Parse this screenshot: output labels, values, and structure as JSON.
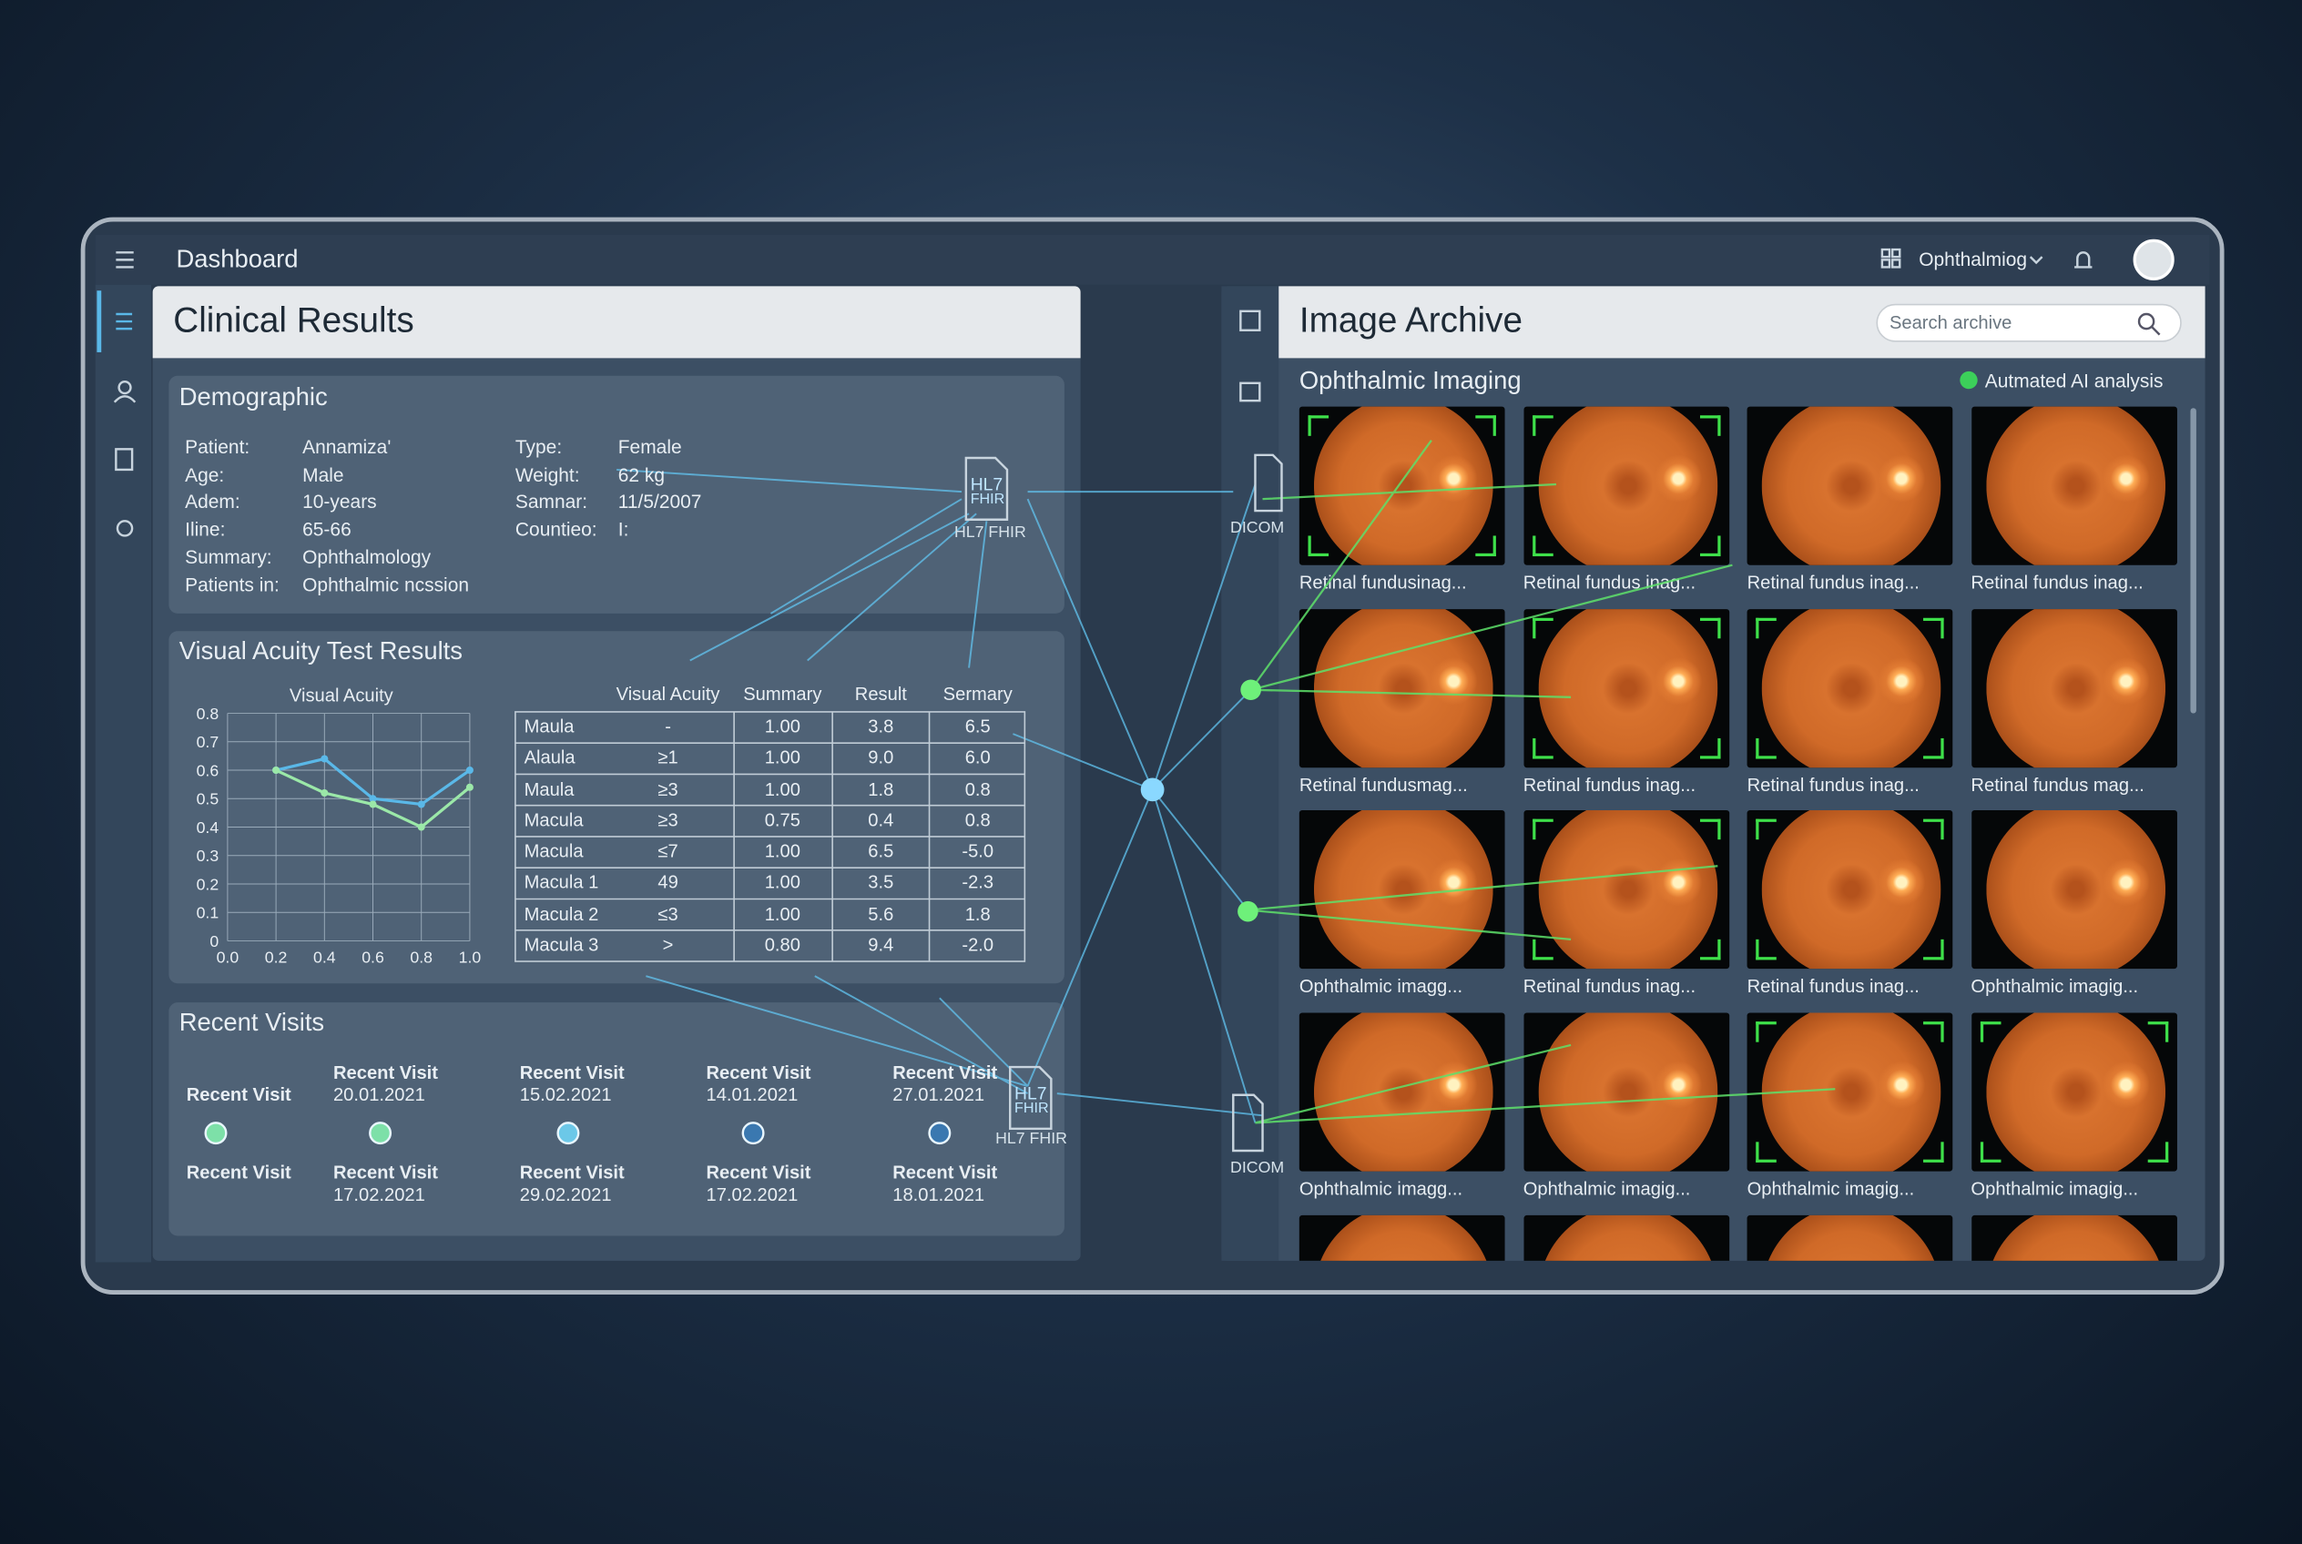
{
  "topbar": {
    "title": "Dashboard",
    "user_menu": "Ophthalmiog"
  },
  "clinical": {
    "title": "Clinical Results",
    "demographic": {
      "title": "Demographic",
      "left": [
        [
          "Patient:",
          "Annamiza'"
        ],
        [
          "Age:",
          "Male"
        ],
        [
          "Adem:",
          "10-years"
        ],
        [
          "Iline:",
          "65-66"
        ],
        [
          "Summary:",
          "Ophthalmology"
        ],
        [
          "Patients in:",
          "Ophthalmic ncssion"
        ]
      ],
      "right": [
        [
          "Type:",
          "Female"
        ],
        [
          "Weight:",
          "62 kg"
        ],
        [
          "Samnar:",
          "11/5/2007"
        ],
        [
          "Countieo:",
          "I:"
        ]
      ]
    },
    "acuity": {
      "title": "Visual Acuity Test Results",
      "table": {
        "header": [
          "Visual Acuity",
          "Summary",
          "Result",
          "Sermary"
        ],
        "rows": [
          [
            "Maula",
            "-",
            "1.00",
            "3.8",
            "6.5"
          ],
          [
            "Alaula",
            "≥1",
            "1.00",
            "9.0",
            "6.0"
          ],
          [
            "Maula",
            "≥3",
            "1.00",
            "1.8",
            "0.8"
          ],
          [
            "Macula",
            "≥3",
            "0.75",
            "0.4",
            "0.8"
          ],
          [
            "Macula",
            "≤7",
            "1.00",
            "6.5",
            "-5.0"
          ],
          [
            "Macula 1",
            "49",
            "1.00",
            "3.5",
            "-2.3"
          ],
          [
            "Macula 2",
            "≤3",
            "1.00",
            "5.6",
            "1.8"
          ],
          [
            "Macula 3",
            ">",
            "0.80",
            "9.4",
            "-2.0"
          ]
        ]
      }
    },
    "visits": {
      "title": "Recent Visits",
      "top": [
        {
          "label": "Recent Visit"
        },
        {
          "label": "Recent Visit",
          "date": "20.01.2021"
        },
        {
          "label": "Recent Visit",
          "date": "15.02.2021"
        },
        {
          "label": "Recent Visit",
          "date": "14.01.2021"
        },
        {
          "label": "Recent Visit",
          "date": "27.01.2021"
        }
      ],
      "bottom": [
        {
          "label": "Recent Visit"
        },
        {
          "label": "Recent Visit",
          "date": "17.02.2021"
        },
        {
          "label": "Recent Visit",
          "date": "29.02.2021"
        },
        {
          "label": "Recent Visit",
          "date": "17.02.2021"
        },
        {
          "label": "Recent Visit",
          "date": "18.01.2021"
        }
      ]
    },
    "hl7": {
      "icon_top": "HL7",
      "icon_bottom": "FHIR",
      "label": "HL7 FHIR"
    }
  },
  "archive": {
    "title": "Image Archive",
    "search_placeholder": "Search archive",
    "section": "Ophthalmic Imaging",
    "ai_status": "Autmated AI analysis",
    "dicom_label": "DICOM",
    "captions": [
      "Retinal fundusinag...",
      "Retinal fundus inag...",
      "Retinal fundus inag...",
      "Retinal fundus inag...",
      "Retinal fundusmag...",
      "Retinal fundus inag...",
      "Retinal fundus inag...",
      "Retinal fundus mag...",
      "Ophthalmic imagg...",
      "Retinal fundus inag...",
      "Retinal fundus inag...",
      "Ophthalmic imagig...",
      "Ophthalmic imagg...",
      "Ophthalmic imagig...",
      "Ophthalmic imagig...",
      "Ophthalmic imagig..."
    ]
  },
  "chart_data": {
    "type": "line",
    "title": "Visual Acuity",
    "x": [
      0.2,
      0.4,
      0.6,
      0.8,
      1.0
    ],
    "series": [
      {
        "color": "#5ab8e8",
        "values": [
          0.6,
          0.64,
          0.5,
          0.48,
          0.6
        ]
      },
      {
        "color": "#9be8a8",
        "values": [
          0.6,
          0.52,
          0.48,
          0.4,
          0.54
        ]
      }
    ],
    "xlim": [
      0,
      1
    ],
    "xticks": [
      {
        "value": 0,
        "label": "0.0"
      },
      0.2,
      0.4,
      0.6,
      0.8,
      {
        "value": 1,
        "label": "1.0"
      }
    ],
    "ylim": [
      0,
      0.8
    ],
    "yticks": [
      0,
      0.1,
      0.2,
      0.3,
      0.4,
      0.5,
      0.6,
      0.7,
      0.8
    ],
    "grid": true
  }
}
